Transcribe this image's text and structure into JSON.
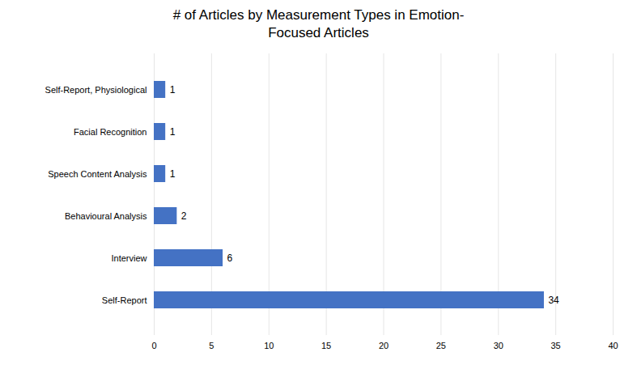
{
  "chart_data": {
    "type": "bar",
    "orientation": "horizontal",
    "title": "# of Articles by Measurement Types in Emotion-\nFocused Articles",
    "categories": [
      "Self-Report",
      "Interview",
      "Behavioural Analysis",
      "Speech Content Analysis",
      "Facial Recognition",
      "Self-Report, Physiological"
    ],
    "values": [
      34,
      6,
      2,
      1,
      1,
      1
    ],
    "color": "#4472C4",
    "xlim": [
      0,
      40
    ],
    "xticks": [
      0,
      5,
      10,
      15,
      20,
      25,
      30,
      35,
      40
    ],
    "grid": true,
    "data_labels": true
  }
}
